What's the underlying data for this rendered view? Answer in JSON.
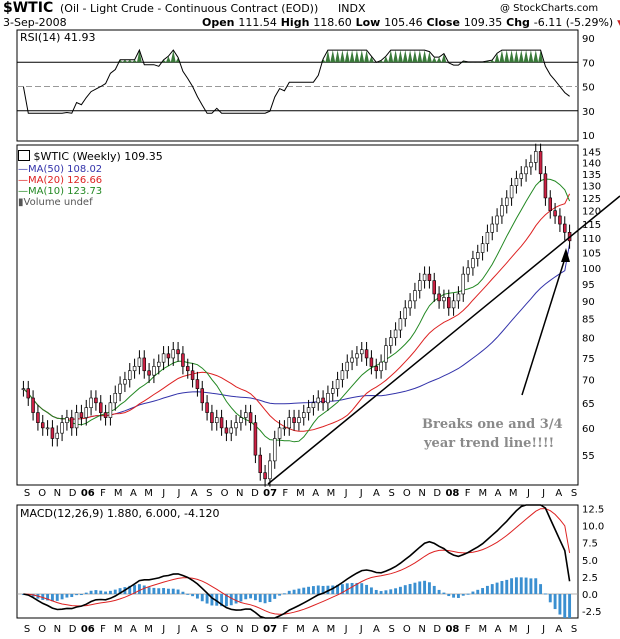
{
  "header": {
    "symbol": "$WTIC",
    "description": "(Oil - Light Crude - Continuous Contract (EOD))",
    "exchange": "INDX",
    "watermark": "@ StockCharts.com",
    "date": "3-Sep-2008",
    "open_label": "Open",
    "open": "111.54",
    "high_label": "High",
    "high": "118.60",
    "low_label": "Low",
    "low": "105.46",
    "close_label": "Close",
    "close": "109.35",
    "chg_label": "Chg",
    "chg": "-6.11 (-5.29%)"
  },
  "legend": {
    "price": "$WTIC (Weekly) 109.35",
    "ma50": "MA(50) 108.02",
    "ma20": "MA(20) 126.66",
    "ma10": "MA(10) 123.73",
    "volume": "Volume undef"
  },
  "rsi_panel": {
    "label": "RSI(14) 41.93",
    "ticks": [
      90,
      70,
      50,
      30,
      10
    ]
  },
  "macd_panel": {
    "label": "MACD(12,26,9) 1.880, 6.000, -4.120",
    "ticks": [
      12.5,
      10.0,
      7.5,
      5.0,
      2.5,
      0.0,
      -2.5
    ]
  },
  "annotation": {
    "line1": "Breaks one and 3/4",
    "line2": "year trend line!!!!"
  },
  "x_axis": [
    "S",
    "O",
    "N",
    "D",
    "06",
    "F",
    "M",
    "A",
    "M",
    "J",
    "J",
    "A",
    "S",
    "O",
    "N",
    "D",
    "07",
    "F",
    "M",
    "A",
    "M",
    "J",
    "J",
    "A",
    "S",
    "O",
    "N",
    "D",
    "08",
    "F",
    "M",
    "A",
    "M",
    "J",
    "J",
    "A",
    "S"
  ],
  "colors": {
    "ma50": "#3333aa",
    "ma20": "#dd2222",
    "ma10": "#228822",
    "up": "#ffffff",
    "down": "#cc2244",
    "rsi_fill": "#3a7a3a",
    "hist": "#3a8fd0"
  },
  "chart_data": {
    "type": "line",
    "title": "$WTIC (Oil - Light Crude - Continuous Contract (EOD))",
    "price_axis": {
      "scale": "log",
      "ticks": [
        55,
        60,
        65,
        70,
        75,
        80,
        85,
        90,
        95,
        100,
        105,
        110,
        115,
        120,
        125,
        130,
        135,
        140,
        145
      ],
      "ylim": [
        50,
        148
      ]
    },
    "price_weekly_close": [
      68,
      66,
      63,
      61,
      60,
      60,
      58,
      59,
      61,
      62,
      60,
      63,
      62,
      64,
      66,
      65,
      63,
      62,
      65,
      67,
      69,
      70,
      72,
      73,
      75,
      72,
      71,
      73,
      74,
      76,
      75,
      77,
      76,
      73,
      72,
      70,
      68,
      65,
      63,
      61,
      62,
      60,
      59,
      60,
      61,
      62,
      63,
      61,
      55,
      52,
      51,
      54,
      58,
      60,
      60,
      62,
      61,
      62,
      63,
      64,
      65,
      66,
      65,
      67,
      68,
      70,
      72,
      74,
      75,
      76,
      77,
      75,
      73,
      72,
      74,
      78,
      80,
      82,
      85,
      88,
      90,
      93,
      96,
      98,
      96,
      92,
      90,
      91,
      88,
      90,
      92,
      98,
      100,
      103,
      105,
      108,
      112,
      115,
      118,
      122,
      125,
      130,
      133,
      135,
      138,
      140,
      145,
      135,
      125,
      120,
      118,
      115,
      112,
      109
    ],
    "ma50_last": 108.02,
    "ma20_last": 126.66,
    "ma10_last": 123.73,
    "rsi_last": 41.93,
    "macd": {
      "macd": 1.88,
      "signal": 6.0,
      "histogram": -4.12,
      "ylim": [
        -3.5,
        13
      ]
    }
  }
}
